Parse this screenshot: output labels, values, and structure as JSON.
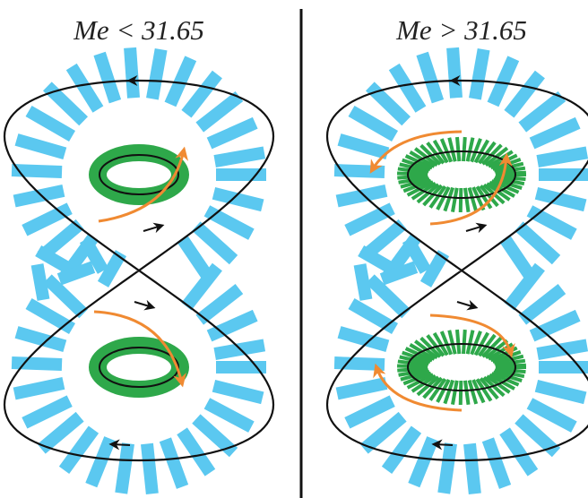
{
  "panels": [
    {
      "title": "Me < 31.65"
    },
    {
      "title": "Me > 31.65"
    }
  ]
}
